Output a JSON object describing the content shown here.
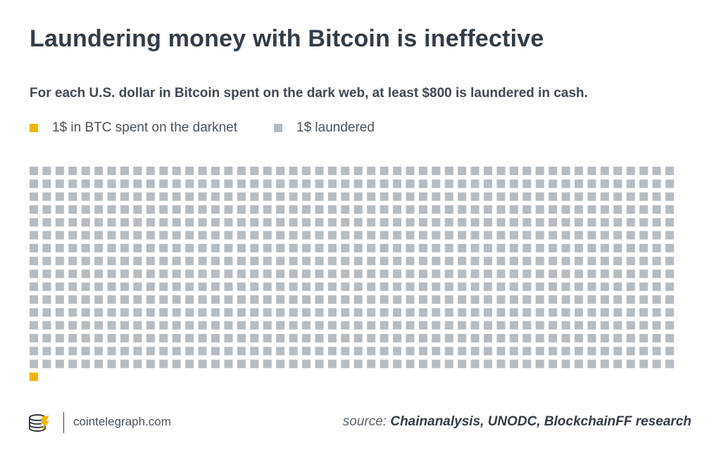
{
  "title": "Laundering money with Bitcoin is ineffective",
  "subtitle": "For each U.S. dollar in Bitcoin spent on the dark web, at least $800 is laundered in cash.",
  "legend": [
    {
      "label": "1$ in BTC spent on the darknet",
      "color": "#f5b30a"
    },
    {
      "label": "1$ laundered",
      "color": "#b5bcc2"
    }
  ],
  "chart_data": {
    "type": "waffle",
    "title": "Laundering money with Bitcoin is ineffective",
    "series": [
      {
        "name": "1$ laundered",
        "values": [
          800
        ],
        "color": "#b5bcc2"
      },
      {
        "name": "1$ in BTC spent on the darknet",
        "values": [
          1
        ],
        "color": "#f5b30a"
      }
    ],
    "columns": 50
  },
  "footer": {
    "site": "cointelegraph.com",
    "logo_icon": "cointelegraph-logo-icon",
    "source_prefix": "source:",
    "source_names": "Chainanalysis, UNODC, BlockchainFF research"
  }
}
